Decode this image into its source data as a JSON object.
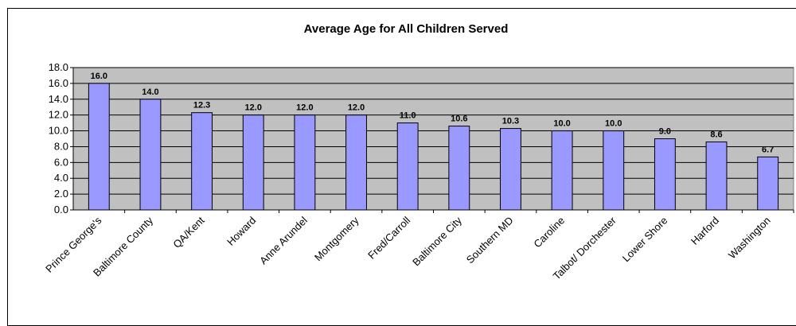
{
  "chart_data": {
    "type": "bar",
    "title": "Average Age for All Children Served",
    "xlabel": "",
    "ylabel": "",
    "ylim": [
      0,
      18
    ],
    "yticks": [
      "0.0",
      "2.0",
      "4.0",
      "6.0",
      "8.0",
      "10.0",
      "12.0",
      "14.0",
      "16.0",
      "18.0"
    ],
    "grid": true,
    "legend": "none",
    "categories": [
      "Prince George's",
      "Baltimore County",
      "QA/Kent",
      "Howard",
      "Anne Arundel",
      "Montgomery",
      "Fred/Carroll",
      "Baltimore City",
      "Southern MD",
      "Caroline",
      "Talbot/ Dorchester",
      "Lower Shore",
      "Harford",
      "Washington"
    ],
    "values": [
      16.0,
      14.0,
      12.3,
      12.0,
      12.0,
      12.0,
      11.0,
      10.6,
      10.3,
      10.0,
      10.0,
      9.0,
      8.6,
      6.7
    ],
    "data_labels": [
      "16.0",
      "14.0",
      "12.3",
      "12.0",
      "12.0",
      "12.0",
      "11.0",
      "10.6",
      "10.3",
      "10.0",
      "10.0",
      "9.0",
      "8.6",
      "6.7"
    ],
    "colors": {
      "bar_fill": "#9999FF",
      "bar_stroke": "#000000",
      "plot_bg": "#C0C0C0",
      "grid": "#000000"
    }
  }
}
